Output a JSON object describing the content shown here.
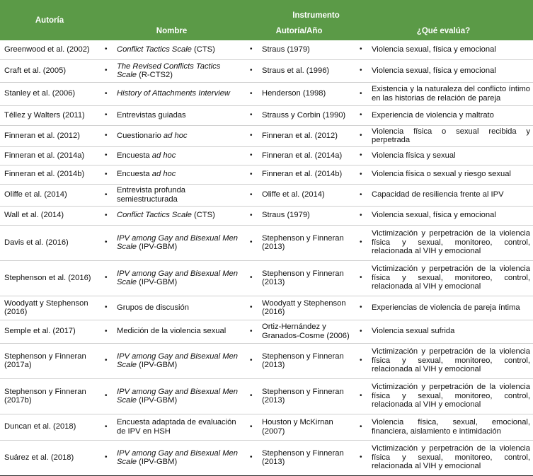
{
  "table": {
    "header": {
      "autoria": "Autoría",
      "instrumento": "Instrumento",
      "columns": [
        "Nombre",
        "Autoría/Año",
        "¿Qué evalúa?"
      ]
    },
    "rows": [
      [
        "Greenwood et al. (2002)",
        [
          {
            "text": "Conflict Tactics Scale",
            "italic": true
          },
          {
            "text": " (CTS)"
          }
        ],
        "Straus (1979)",
        "Violencia sexual, física y emocional"
      ],
      [
        "Craft et al. (2005)",
        [
          {
            "text": "The Revised Conflicts Tactics Scale",
            "italic": true
          },
          {
            "text": " (R-CTS2)"
          }
        ],
        "Straus et al. (1996)",
        "Violencia sexual, física y emocional"
      ],
      [
        "Stanley et al. (2006)",
        [
          {
            "text": "History of Attachments Interview",
            "italic": true
          }
        ],
        "Henderson (1998)",
        "Existencia y la naturaleza del conflicto íntimo en las historias de relación de pareja"
      ],
      [
        "Téllez y Walters (2011)",
        [
          {
            "text": "Entrevistas guiadas"
          }
        ],
        "Strauss y Corbin (1990)",
        "Experiencia de violencia y maltrato"
      ],
      [
        "Finneran et al. (2012)",
        [
          {
            "text": "Cuestionario "
          },
          {
            "text": "ad hoc",
            "italic": true
          }
        ],
        "Finneran et al. (2012)",
        "Violencia física o sexual recibida y perpetrada"
      ],
      [
        "Finneran et al. (2014a)",
        [
          {
            "text": "Encuesta "
          },
          {
            "text": "ad hoc",
            "italic": true
          }
        ],
        "Finneran et al. (2014a)",
        "Violencia física y sexual"
      ],
      [
        "Finneran et al. (2014b)",
        [
          {
            "text": "Encuesta "
          },
          {
            "text": "ad hoc",
            "italic": true
          }
        ],
        "Finneran et al. (2014b)",
        "Violencia física o sexual y riesgo sexual"
      ],
      [
        "Oliffe et al. (2014)",
        [
          {
            "text": "Entrevista profunda semiestructurada"
          }
        ],
        "Oliffe et al. (2014)",
        "Capacidad de resiliencia frente al IPV"
      ],
      [
        "Wall et al. (2014)",
        [
          {
            "text": "Conflict Tactics Scale",
            "italic": true
          },
          {
            "text": " (CTS)"
          }
        ],
        "Straus (1979)",
        "Violencia sexual, física y emocional"
      ],
      [
        "Davis et al. (2016)",
        [
          {
            "text": "IPV among Gay and Bisexual Men Scale",
            "italic": true
          },
          {
            "text": " (IPV-GBM)"
          }
        ],
        "Stephenson y Finneran (2013)",
        "Victimización y perpetración de la violencia física y sexual, monitoreo, control, relacionada al VIH y emocional"
      ],
      [
        "Stephenson et al. (2016)",
        [
          {
            "text": "IPV among Gay and Bisexual Men Scale",
            "italic": true
          },
          {
            "text": " (IPV-GBM)"
          }
        ],
        "Stephenson y Finneran (2013)",
        "Victimización y perpetración de la violencia física y sexual, monitoreo, control, relacionada al VIH y emocional"
      ],
      [
        "Woodyatt y Stephenson (2016)",
        [
          {
            "text": "Grupos de discusión"
          }
        ],
        "Woodyatt y Stephenson (2016)",
        "Experiencias de violencia de pareja íntima"
      ],
      [
        "Semple et al. (2017)",
        [
          {
            "text": "Medición de la violencia sexual"
          }
        ],
        "Ortiz-Hernández y Granados-Cosme (2006)",
        "Violencia sexual sufrida"
      ],
      [
        "Stephenson y Finneran (2017a)",
        [
          {
            "text": "IPV among Gay and Bisexual Men Scale",
            "italic": true
          },
          {
            "text": " (IPV-GBM)"
          }
        ],
        "Stephenson y Finneran (2013)",
        "Victimización y perpetración de la violencia física y sexual, monitoreo, control, relacionada al VIH y emocional"
      ],
      [
        "Stephenson y Finneran (2017b)",
        [
          {
            "text": "IPV among Gay and Bisexual Men Scale",
            "italic": true
          },
          {
            "text": " (IPV-GBM)"
          }
        ],
        "Stephenson y Finneran (2013)",
        "Victimización y perpetración de la violencia física y sexual, monitoreo, control, relacionada al VIH y emocional"
      ],
      [
        "Duncan et al. (2018)",
        [
          {
            "text": "Encuesta adaptada de evaluación de IPV en HSH"
          }
        ],
        "Houston y McKirnan (2007)",
        "Violencia física, sexual, emocional, financiera, aislamiento e intimidación"
      ],
      [
        "Suárez et al. (2018)",
        [
          {
            "text": "IPV among Gay and Bisexual Men Scale",
            "italic": true
          },
          {
            "text": " (IPV-GBM)"
          }
        ],
        "Stephenson y Finneran (2013)",
        "Victimización y perpetración de la violencia física y sexual, monitoreo, control, relacionada al VIH y emocional"
      ]
    ]
  }
}
